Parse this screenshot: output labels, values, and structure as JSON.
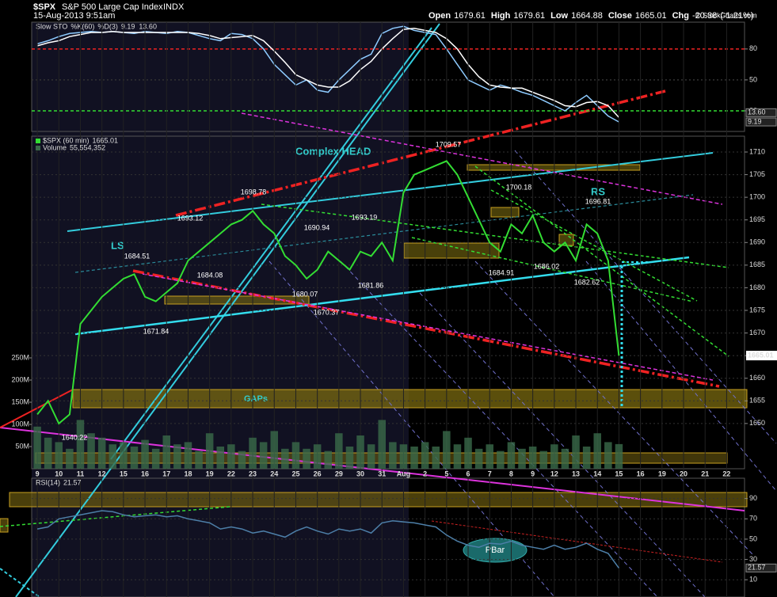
{
  "header": {
    "symbol": "$SPX",
    "name": "S&P 500 Large Cap Index",
    "exchange": "INDX",
    "datetime": "15-Aug-2013 9:51am",
    "quote": [
      {
        "label": "Open",
        "value": 1679.61
      },
      {
        "label": "High",
        "value": 1679.61
      },
      {
        "label": "Low",
        "value": 1664.88
      },
      {
        "label": "Close",
        "value": 1665.01
      },
      {
        "label": "Chg",
        "value": -20.38
      }
    ],
    "change_pct": "(-1.21%)",
    "credit": "© StockCharts.com"
  },
  "chart_data": [
    {
      "type": "line",
      "title": "Slow STO",
      "x": [
        0,
        0.5,
        1,
        1.5,
        2,
        2.5,
        3,
        3.5,
        4,
        4.5,
        5,
        5.5,
        6,
        6.5,
        7,
        7.5,
        8,
        8.5,
        9,
        9.5,
        10,
        10.5,
        11,
        11.5,
        12,
        12.5,
        13,
        13.5,
        14,
        14.5,
        15,
        15.5,
        16,
        16.5,
        17,
        17.5,
        18,
        18.5,
        19,
        19.5,
        20,
        20.5,
        21,
        21.5,
        22,
        22.5,
        23,
        23.5,
        24,
        24.5,
        25,
        25.5,
        26,
        26.5,
        27
      ],
      "xlim": [
        -0.26,
        32.83
      ],
      "ylim": [
        0,
        106
      ],
      "yticks": [
        20,
        50,
        80
      ],
      "series": [
        {
          "name": "%K(60)",
          "color": "#8ecbff",
          "values": [
            85,
            88,
            92,
            95,
            96,
            97,
            96,
            97,
            96,
            95,
            97,
            96,
            95,
            97,
            96,
            93,
            90,
            88,
            95,
            94,
            90,
            80,
            65,
            55,
            45,
            50,
            40,
            38,
            50,
            60,
            70,
            75,
            95,
            100,
            102,
            98,
            96,
            94,
            80,
            65,
            50,
            45,
            40,
            45,
            42,
            38,
            35,
            30,
            25,
            20,
            28,
            35,
            25,
            15,
            9.19
          ]
        },
        {
          "name": "%D(3)",
          "color": "#ffffff",
          "legend_value": "13.60",
          "values": [
            83,
            86,
            88,
            92,
            94,
            96,
            96,
            97,
            96,
            96,
            96,
            96,
            96,
            96,
            96,
            95,
            93,
            90,
            91,
            92,
            93,
            88,
            78,
            67,
            55,
            50,
            45,
            43,
            43,
            49,
            60,
            68,
            80,
            90,
            99,
            100,
            98,
            96,
            90,
            80,
            65,
            53,
            45,
            43,
            42,
            42,
            38,
            34,
            30,
            25,
            24,
            28,
            29,
            25,
            13.6
          ]
        }
      ]
    },
    {
      "type": "line",
      "x": [
        0,
        0.5,
        1,
        1.5,
        2,
        2.5,
        3,
        3.5,
        4,
        4.5,
        5,
        5.5,
        6,
        6.5,
        7,
        7.5,
        8,
        8.5,
        9,
        9.5,
        10,
        10.5,
        11,
        11.5,
        12,
        12.5,
        13,
        13.5,
        14,
        14.5,
        15,
        15.5,
        16,
        16.5,
        17,
        17.5,
        18,
        18.5,
        19,
        19.5,
        20,
        20.5,
        21,
        21.5,
        22,
        22.5,
        23,
        23.5,
        24,
        24.5,
        25,
        25.5,
        26,
        26.5,
        27
      ],
      "xlim": [
        -0.26,
        32.83
      ],
      "ylim": [
        1640,
        1713.5
      ],
      "y2lim": [
        0,
        750000000
      ],
      "grid": true,
      "xticks": [
        {
          "value": 0,
          "label": "9"
        },
        {
          "value": 1,
          "label": "10"
        },
        {
          "value": 2,
          "label": "11"
        },
        {
          "value": 3,
          "label": "12"
        },
        {
          "value": 4,
          "label": "15"
        },
        {
          "value": 5,
          "label": "16"
        },
        {
          "value": 6,
          "label": "17"
        },
        {
          "value": 7,
          "label": "18"
        },
        {
          "value": 8,
          "label": "19"
        },
        {
          "value": 9,
          "label": "22"
        },
        {
          "value": 10,
          "label": "23"
        },
        {
          "value": 11,
          "label": "24"
        },
        {
          "value": 12,
          "label": "25"
        },
        {
          "value": 13,
          "label": "26"
        },
        {
          "value": 14,
          "label": "29"
        },
        {
          "value": 15,
          "label": "30"
        },
        {
          "value": 16,
          "label": "31"
        },
        {
          "value": 17,
          "label": "Aug"
        },
        {
          "value": 18,
          "label": "2"
        },
        {
          "value": 19,
          "label": "5"
        },
        {
          "value": 20,
          "label": "6"
        },
        {
          "value": 21,
          "label": "7"
        },
        {
          "value": 22,
          "label": "8"
        },
        {
          "value": 23,
          "label": "9"
        },
        {
          "value": 24,
          "label": "12"
        },
        {
          "value": 25,
          "label": "13"
        },
        {
          "value": 26,
          "label": "14"
        },
        {
          "value": 27,
          "label": "15"
        },
        {
          "value": 28,
          "label": "16"
        },
        {
          "value": 29,
          "label": "19"
        },
        {
          "value": 30,
          "label": "20"
        },
        {
          "value": 31,
          "label": "21"
        },
        {
          "value": 32,
          "label": "22"
        }
      ],
      "yticks": [
        1650,
        1655,
        1660,
        1665,
        1670,
        1675,
        1680,
        1685,
        1690,
        1695,
        1700,
        1705,
        1710
      ],
      "y2ticks": [
        {
          "value": 50000000,
          "label": "50M"
        },
        {
          "value": 100000000,
          "label": "100M"
        },
        {
          "value": 150000000,
          "label": "150M"
        },
        {
          "value": 200000000,
          "label": "200M"
        },
        {
          "value": 250000000,
          "label": "250M"
        }
      ],
      "series": [
        {
          "name": "$SPX (60 min)",
          "color": "#33dd33",
          "values": [
            1652,
            1655,
            1650,
            1652,
            1672,
            1675,
            1678,
            1680,
            1682,
            1683,
            1678,
            1677,
            1679,
            1681,
            1686,
            1688,
            1690,
            1692,
            1694,
            1695,
            1697,
            1694,
            1692,
            1687,
            1685,
            1682,
            1684,
            1688,
            1686,
            1684,
            1688,
            1687,
            1690,
            1686,
            1701,
            1705,
            1706,
            1707,
            1708,
            1705,
            1700,
            1695,
            1690,
            1688,
            1694,
            1692,
            1696,
            1690,
            1688,
            1690,
            1686,
            1694,
            1692,
            1686,
            1665.01
          ]
        },
        {
          "name": "Volume",
          "color": "#3a6a4a",
          "axis": "y2",
          "legend_value": "55,554,352",
          "values": [
            95000000,
            70000000,
            60000000,
            45000000,
            110000000,
            80000000,
            70000000,
            55000000,
            60000000,
            50000000,
            65000000,
            45000000,
            75000000,
            55000000,
            60000000,
            40000000,
            80000000,
            50000000,
            55000000,
            40000000,
            70000000,
            60000000,
            85000000,
            45000000,
            60000000,
            45000000,
            55000000,
            40000000,
            80000000,
            50000000,
            75000000,
            55000000,
            110000000,
            60000000,
            55000000,
            50000000,
            60000000,
            50000000,
            85000000,
            55000000,
            70000000,
            45000000,
            55000000,
            40000000,
            60000000,
            45000000,
            50000000,
            40000000,
            55000000,
            45000000,
            75000000,
            50000000,
            80000000,
            60000000,
            55554352
          ]
        }
      ],
      "annotations": [
        "Complex HEAD",
        "LS",
        "RS",
        "GAPs"
      ],
      "price_labels": [
        1693.12,
        1698.78,
        1690.94,
        1693.19,
        1709.57,
        1700.18,
        1696.81,
        1684.51,
        1684.08,
        1680.07,
        1681.86,
        1670.37,
        1684.91,
        1686.02,
        1682.62,
        1671.84,
        1640.22
      ]
    },
    {
      "type": "line",
      "title": "RSI(14)",
      "x": [
        0,
        0.5,
        1,
        1.5,
        2,
        2.5,
        3,
        3.5,
        4,
        4.5,
        5,
        5.5,
        6,
        6.5,
        7,
        7.5,
        8,
        8.5,
        9,
        9.5,
        10,
        10.5,
        11,
        11.5,
        12,
        12.5,
        13,
        13.5,
        14,
        14.5,
        15,
        15.5,
        16,
        16.5,
        17,
        17.5,
        18,
        18.5,
        19,
        19.5,
        20,
        20.5,
        21,
        21.5,
        22,
        22.5,
        23,
        23.5,
        24,
        24.5,
        25,
        25.5,
        26,
        26.5,
        27
      ],
      "xlim": [
        -0.26,
        32.83
      ],
      "ylim": [
        -7,
        110
      ],
      "yticks": [
        10,
        30,
        50,
        70,
        90
      ],
      "series": [
        {
          "name": "RSI(14)",
          "color": "#4d7fa8",
          "values": [
            60,
            62,
            70,
            72,
            74,
            76,
            78,
            77,
            74,
            72,
            73,
            74,
            72,
            73,
            70,
            68,
            66,
            60,
            62,
            60,
            56,
            58,
            55,
            52,
            58,
            62,
            58,
            55,
            60,
            58,
            60,
            56,
            66,
            68,
            67,
            66,
            64,
            62,
            54,
            48,
            44,
            42,
            46,
            45,
            48,
            44,
            42,
            40,
            44,
            40,
            42,
            46,
            40,
            36,
            21.57
          ]
        }
      ],
      "annotations": [
        "PBar"
      ]
    }
  ]
}
